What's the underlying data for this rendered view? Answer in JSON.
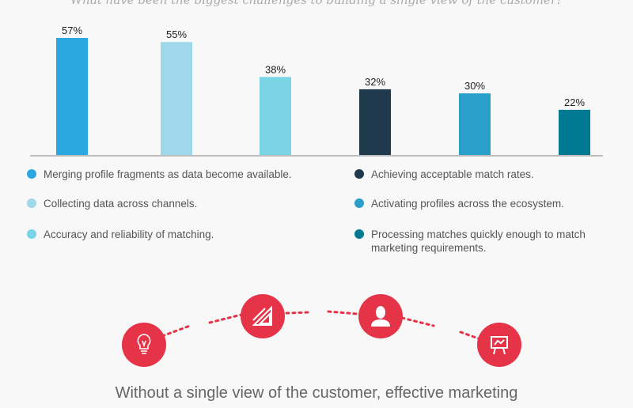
{
  "question": "What have been the biggest challenges to building a single view of the customer?",
  "chart_data": {
    "type": "bar",
    "categories": [
      "Merging profile fragments as data become available.",
      "Collecting data across channels.",
      "Accuracy and reliability of matching.",
      "Achieving acceptable match rates.",
      "Activating profiles across the ecosystem.",
      "Processing matches quickly enough to match marketing requirements."
    ],
    "values": [
      57,
      55,
      38,
      32,
      30,
      22
    ],
    "labels": [
      "57%",
      "55%",
      "38%",
      "32%",
      "30%",
      "22%"
    ],
    "colors": [
      "#2ba8e0",
      "#9ed8ea",
      "#7bd3e6",
      "#1e3a4c",
      "#2a9fc9",
      "#007a93"
    ],
    "ylim": [
      0,
      60
    ],
    "grid": false,
    "legend": "bottom"
  },
  "icons": [
    "lightbulb-icon",
    "ruler-triangle-icon",
    "user-icon",
    "presentation-chart-icon"
  ],
  "accent": "#e53448",
  "bottom_text": "Without a single view of the customer, effective marketing"
}
